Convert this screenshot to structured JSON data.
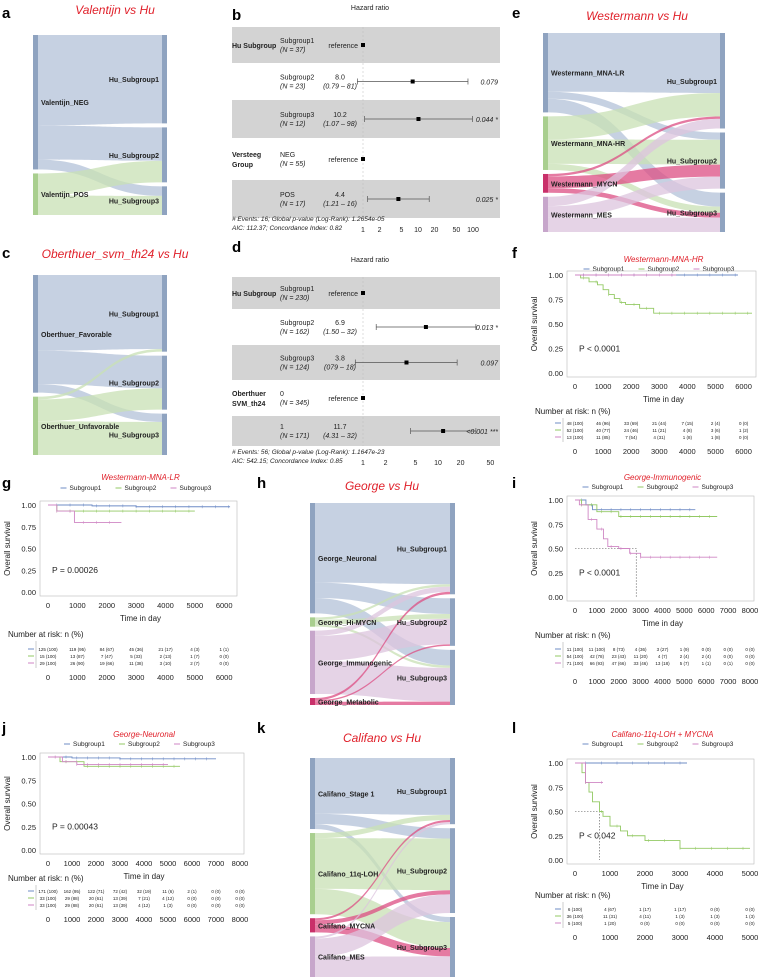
{
  "colors": {
    "title_red": "#e0202a",
    "sg1": "#6f8cc6",
    "sg2": "#93c964",
    "sg3": "#cf86c4",
    "band": "#d3d3d3",
    "right_node": "#8fa3c0"
  },
  "sankeys": [
    {
      "letter": "a",
      "title": "Valentijn vs Hu",
      "left": [
        {
          "name": "Valentijn_NEG",
          "value": 55,
          "color": "#b3c2d8",
          "bar": "#8fa3c0"
        },
        {
          "name": "Valentijn_POS",
          "value": 17,
          "color": "#c8e0b4",
          "bar": "#a9cf8f"
        }
      ],
      "right": [
        "Hu_Subgroup1",
        "Hu_Subgroup2",
        "Hu_Subgroup3"
      ],
      "flows": [
        [
          0,
          0,
          37
        ],
        [
          0,
          1,
          14
        ],
        [
          0,
          2,
          4
        ],
        [
          1,
          1,
          9
        ],
        [
          1,
          2,
          8
        ]
      ]
    },
    {
      "letter": "c",
      "title": "Oberthuer_svm_th24 vs Hu",
      "left": [
        {
          "name": "Oberthuer_Favorable",
          "value": 345,
          "color": "#b3c2d8",
          "bar": "#8fa3c0"
        },
        {
          "name": "Oberthuer_Unfavorable",
          "value": 171,
          "color": "#c8e0b4",
          "bar": "#a9cf8f"
        }
      ],
      "right": [
        "Hu_Subgroup1",
        "Hu_Subgroup2",
        "Hu_Subgroup3"
      ],
      "flows": [
        [
          0,
          0,
          222
        ],
        [
          0,
          1,
          98
        ],
        [
          0,
          2,
          25
        ],
        [
          1,
          0,
          8
        ],
        [
          1,
          1,
          64
        ],
        [
          1,
          2,
          99
        ]
      ]
    },
    {
      "letter": "e",
      "title": "Westermann vs Hu",
      "left": [
        {
          "name": "Westermann_MNA-LR",
          "value": 169,
          "color": "#b3c2d8",
          "bar": "#8fa3c0"
        },
        {
          "name": "Westermann_MNA-HR",
          "value": 114,
          "color": "#c8e0b4",
          "bar": "#a9cf8f"
        },
        {
          "name": "Westermann_MYCN",
          "value": 40,
          "color": "#dc4d83",
          "bar": "#c9306a"
        },
        {
          "name": "Westermann_MES",
          "value": 75,
          "color": "#dcc4de",
          "bar": "#c7a6cb"
        }
      ],
      "right": [
        "Hu_Subgroup1",
        "Hu_Subgroup2",
        "Hu_Subgroup3"
      ],
      "flows": [
        [
          0,
          0,
          125
        ],
        [
          0,
          1,
          15
        ],
        [
          0,
          2,
          29
        ],
        [
          1,
          0,
          49
        ],
        [
          1,
          1,
          52
        ],
        [
          1,
          2,
          13
        ],
        [
          2,
          0,
          5
        ],
        [
          2,
          1,
          25
        ],
        [
          2,
          2,
          10
        ],
        [
          3,
          0,
          20
        ],
        [
          3,
          1,
          25
        ],
        [
          3,
          2,
          30
        ]
      ]
    },
    {
      "letter": "h",
      "title": "George vs Hu",
      "left": [
        {
          "name": "George_Neuronal",
          "value": 237,
          "color": "#b3c2d8",
          "bar": "#8fa3c0"
        },
        {
          "name": "George_Hi-MYCN",
          "value": 20,
          "color": "#c8e0b4",
          "bar": "#a9cf8f"
        },
        {
          "name": "George_Immunogenic",
          "value": 136,
          "color": "#dcc4de",
          "bar": "#c7a6cb"
        },
        {
          "name": "George_Metabolic",
          "value": 15,
          "color": "#dc4d83",
          "bar": "#c9306a"
        }
      ],
      "right": [
        "Hu_Subgroup1",
        "Hu_Subgroup2",
        "Hu_Subgroup3"
      ],
      "flows": [
        [
          0,
          0,
          171
        ],
        [
          0,
          1,
          33
        ],
        [
          0,
          2,
          33
        ],
        [
          1,
          0,
          5
        ],
        [
          1,
          1,
          10
        ],
        [
          1,
          2,
          5
        ],
        [
          2,
          0,
          11
        ],
        [
          2,
          1,
          54
        ],
        [
          2,
          2,
          71
        ],
        [
          3,
          0,
          5
        ],
        [
          3,
          1,
          3
        ],
        [
          3,
          2,
          7
        ]
      ]
    },
    {
      "letter": "k",
      "title": "Califano vs Hu",
      "left": [
        {
          "name": "Califano_Stage 1",
          "value": 70,
          "color": "#b3c2d8",
          "bar": "#8fa3c0"
        },
        {
          "name": "Califano_11q-LOH",
          "value": 80,
          "color": "#c8e0b4",
          "bar": "#a9cf8f"
        },
        {
          "name": "Califano_MYCNA",
          "value": 14,
          "color": "#dc4d83",
          "bar": "#c9306a"
        },
        {
          "name": "Califano_MES",
          "value": 40,
          "color": "#dcc4de",
          "bar": "#c7a6cb"
        }
      ],
      "right": [
        "Hu_Subgroup1",
        "Hu_Subgroup2",
        "Hu_Subgroup3"
      ],
      "flows": [
        [
          0,
          0,
          55
        ],
        [
          0,
          1,
          10
        ],
        [
          0,
          2,
          5
        ],
        [
          1,
          0,
          5
        ],
        [
          1,
          1,
          50
        ],
        [
          1,
          2,
          25
        ],
        [
          2,
          0,
          2
        ],
        [
          2,
          1,
          4
        ],
        [
          2,
          2,
          8
        ],
        [
          3,
          0,
          2
        ],
        [
          3,
          1,
          18
        ],
        [
          3,
          2,
          20
        ]
      ]
    }
  ],
  "forests": [
    {
      "letter": "b",
      "header": "Hazard ratio",
      "rows": [
        {
          "group": "Hu Subgroup",
          "level": "Subgroup1",
          "n": "(N = 37)",
          "hr": "reference",
          "ci": "",
          "point": 1,
          "lo": null,
          "hi": null,
          "p": ""
        },
        {
          "group": "",
          "level": "Subgroup2",
          "n": "(N = 23)",
          "hr": "8.0",
          "ci": "(0.79 – 81)",
          "point": 8.0,
          "lo": 0.79,
          "hi": 81,
          "p": "0.079"
        },
        {
          "group": "",
          "level": "Subgroup3",
          "n": "(N = 12)",
          "hr": "10.2",
          "ci": "(1.07 – 98)",
          "point": 10.2,
          "lo": 1.07,
          "hi": 98,
          "p": "0.044 *"
        },
        {
          "group": "Versteeg Group",
          "level": "NEG",
          "n": "(N = 55)",
          "hr": "reference",
          "ci": "",
          "point": 1,
          "lo": null,
          "hi": null,
          "p": ""
        },
        {
          "group": "",
          "level": "POS",
          "n": "(N = 17)",
          "hr": "4.4",
          "ci": "(1.21 – 16)",
          "point": 4.4,
          "lo": 1.21,
          "hi": 16,
          "p": "0.025 *"
        }
      ],
      "footer1": "# Events: 16; Global p-value (Log-Rank): 1.2654e-05",
      "footer2": "AIC: 112.37; Concordance Index: 0.82",
      "ticks": [
        1,
        2,
        5,
        10,
        20,
        50,
        100
      ]
    },
    {
      "letter": "d",
      "header": "Hazard ratio",
      "rows": [
        {
          "group": "Hu Subgroup",
          "level": "Subgroup1",
          "n": "(N = 230)",
          "hr": "reference",
          "ci": "",
          "point": 1,
          "lo": null,
          "hi": null,
          "p": ""
        },
        {
          "group": "",
          "level": "Subgroup2",
          "n": "(N = 162)",
          "hr": "6.9",
          "ci": "(1.50 – 32)",
          "point": 6.9,
          "lo": 1.5,
          "hi": 32,
          "p": "0.013 *"
        },
        {
          "group": "",
          "level": "Subgroup3",
          "n": "(N = 124)",
          "hr": "3.8",
          "ci": "(079 – 18)",
          "point": 3.8,
          "lo": 0.79,
          "hi": 18,
          "p": "0.097"
        },
        {
          "group": "Oberthuer SVM_th24",
          "level": "0",
          "n": "(N = 345)",
          "hr": "reference",
          "ci": "",
          "point": 1,
          "lo": null,
          "hi": null,
          "p": ""
        },
        {
          "group": "",
          "level": "1",
          "n": "(N = 171)",
          "hr": "11.7",
          "ci": "(4.31 – 32)",
          "point": 11.7,
          "lo": 4.31,
          "hi": 32,
          "p": "<0.001 ***"
        }
      ],
      "footer1": "# Events: 56; Global p-value (Log-Rank): 1.1647e-23",
      "footer2": "AIC: 542.15; Concordance Index: 0.85",
      "ticks": [
        1,
        2,
        5,
        10,
        20,
        50
      ]
    }
  ],
  "km": [
    {
      "letter": "f",
      "title": "Westermann-MNA-HR",
      "legend": [
        "Subgroup1",
        "Subgroup2",
        "Subgroup3"
      ],
      "ylabel": "Overall survival",
      "xlabel": "Time in day",
      "pvalue": "P < 0.0001",
      "risk_label": "Number at risk: n (%)",
      "yticks": [
        "1.00",
        "0.75",
        "0.50",
        "0.25",
        "0.00"
      ],
      "xticks": [
        0,
        1000,
        2000,
        3000,
        4000,
        5000,
        6000
      ],
      "xmax": 6300,
      "series": [
        [
          [
            0,
            1
          ],
          [
            5800,
            1
          ]
        ],
        [
          [
            0,
            1
          ],
          [
            200,
            0.97
          ],
          [
            500,
            0.93
          ],
          [
            800,
            0.9
          ],
          [
            1000,
            0.85
          ],
          [
            1200,
            0.8
          ],
          [
            1400,
            0.76
          ],
          [
            1600,
            0.72
          ],
          [
            1800,
            0.7
          ],
          [
            2300,
            0.66
          ],
          [
            2800,
            0.61
          ],
          [
            6300,
            0.61
          ]
        ],
        [
          [
            0,
            1
          ],
          [
            3600,
            1
          ]
        ]
      ],
      "risk": [
        [
          "48 (100)",
          "46 (96)",
          "33 (69)",
          "21 (44)",
          "7 (15)",
          "2 (4)",
          "0 (0)"
        ],
        [
          "52 (100)",
          "40 (77)",
          "24 (46)",
          "11 (21)",
          "4 (8)",
          "3 (6)",
          "1 (2)"
        ],
        [
          "13 (100)",
          "11 (85)",
          "7 (54)",
          "4 (31)",
          "1 (8)",
          "1 (8)",
          "0 (0)"
        ]
      ]
    },
    {
      "letter": "g",
      "title": "Westermann-MNA-LR",
      "legend": [
        "Subgroup1",
        "Subgroup2",
        "Subgroup3"
      ],
      "ylabel": "Overall survival",
      "xlabel": "Time in day",
      "pvalue": "P = 0.00026",
      "risk_label": "Number at risk: n (%)",
      "yticks": [
        "1.00",
        "0.75",
        "0.50",
        "0.25",
        "0.00"
      ],
      "xticks": [
        0,
        1000,
        2000,
        3000,
        4000,
        5000,
        6000
      ],
      "xmax": 6300,
      "series": [
        [
          [
            0,
            1
          ],
          [
            1500,
            0.99
          ],
          [
            3000,
            0.98
          ],
          [
            6200,
            0.98
          ]
        ],
        [
          [
            0,
            1
          ],
          [
            300,
            0.93
          ],
          [
            5000,
            0.93
          ]
        ],
        [
          [
            0,
            1
          ],
          [
            300,
            0.93
          ],
          [
            900,
            0.8
          ],
          [
            2500,
            0.8
          ]
        ]
      ],
      "risk": [
        [
          "125 (100)",
          "119 (95)",
          "84 (67)",
          "45 (36)",
          "21 (17)",
          "4 (3)",
          "1 (1)"
        ],
        [
          "15 (100)",
          "13 (87)",
          "7 (47)",
          "5 (33)",
          "2 (13)",
          "1 (7)",
          "0 (0)"
        ],
        [
          "29 (100)",
          "26 (90)",
          "19 (66)",
          "11 (38)",
          "3 (10)",
          "2 (7)",
          "0 (0)"
        ]
      ]
    },
    {
      "letter": "i",
      "title": "George-Immunogenic",
      "legend": [
        "Subgroup1",
        "Subgroup2",
        "Subgroup3"
      ],
      "ylabel": "Overall survival",
      "xlabel": "Time in day",
      "pvalue": "P < 0.0001",
      "risk_label": "Number at risk: n (%)",
      "yticks": [
        "1.00",
        "0.75",
        "0.50",
        "0.25",
        "0.00"
      ],
      "xticks": [
        0,
        1000,
        2000,
        3000,
        4000,
        5000,
        6000,
        7000,
        8000
      ],
      "xmax": 8000,
      "series": [
        [
          [
            0,
            1
          ],
          [
            500,
            0.95
          ],
          [
            800,
            0.9
          ],
          [
            5500,
            0.9
          ]
        ],
        [
          [
            0,
            1
          ],
          [
            300,
            0.95
          ],
          [
            1000,
            0.88
          ],
          [
            2000,
            0.83
          ],
          [
            6500,
            0.83
          ]
        ],
        [
          [
            0,
            1
          ],
          [
            200,
            0.95
          ],
          [
            600,
            0.8
          ],
          [
            1000,
            0.7
          ],
          [
            1300,
            0.6
          ],
          [
            1500,
            0.52
          ],
          [
            2000,
            0.5
          ],
          [
            2500,
            0.45
          ],
          [
            3000,
            0.41
          ],
          [
            6500,
            0.41
          ]
        ]
      ],
      "median": 2800,
      "risk": [
        [
          "11 (100)",
          "11 (100)",
          "8 (73)",
          "4 (36)",
          "3 (27)",
          "1 (9)",
          "0 (0)",
          "0 (0)",
          "0 (0)"
        ],
        [
          "54 (100)",
          "42 (78)",
          "23 (43)",
          "11 (20)",
          "4 (7)",
          "2 (4)",
          "2 (4)",
          "0 (0)",
          "0 (0)"
        ],
        [
          "71 (100)",
          "66 (93)",
          "47 (66)",
          "33 (46)",
          "13 (18)",
          "5 (7)",
          "1 (1)",
          "0 (1)",
          "0 (0)"
        ]
      ]
    },
    {
      "letter": "j",
      "title": "George-Neuronal",
      "legend": [
        "Subgroup1",
        "Subgroup2",
        "Subgroup3"
      ],
      "ylabel": "Overall survival",
      "xlabel": "Time in day",
      "pvalue": "P = 0.00043",
      "risk_label": "Number at risk: n (%)",
      "yticks": [
        "1.00",
        "0.75",
        "0.50",
        "0.25",
        "0.00"
      ],
      "xticks": [
        0,
        1000,
        2000,
        3000,
        4000,
        5000,
        6000,
        7000,
        8000
      ],
      "xmax": 8000,
      "series": [
        [
          [
            0,
            1
          ],
          [
            1000,
            0.99
          ],
          [
            3000,
            0.98
          ],
          [
            7000,
            0.98
          ]
        ],
        [
          [
            0,
            1
          ],
          [
            500,
            0.95
          ],
          [
            1500,
            0.9
          ],
          [
            5500,
            0.9
          ]
        ],
        [
          [
            0,
            1
          ],
          [
            600,
            0.95
          ],
          [
            1200,
            0.92
          ],
          [
            5000,
            0.92
          ]
        ]
      ],
      "risk": [
        [
          "171 (100)",
          "162 (95)",
          "122 (71)",
          "72 (42)",
          "32 (19)",
          "11 (6)",
          "2 (1)",
          "0 (0)",
          "0 (0)"
        ],
        [
          "33 (100)",
          "29 (88)",
          "20 (61)",
          "13 (39)",
          "7 (21)",
          "4 (12)",
          "0 (0)",
          "0 (0)",
          "0 (0)"
        ],
        [
          "33 (100)",
          "29 (88)",
          "20 (61)",
          "13 (39)",
          "4 (12)",
          "1 (3)",
          "0 (0)",
          "0 (0)",
          "0 (0)"
        ]
      ]
    },
    {
      "letter": "l",
      "title": "Califano-11q-LOH + MYCNA",
      "legend": [
        "Subgroup1",
        "Subgroup2",
        "Subgroup3"
      ],
      "ylabel": "Overall survival",
      "xlabel": "Time in Day",
      "pvalue": "P < 0.042",
      "risk_label": "Number at risk: n (%)",
      "yticks": [
        "1.00",
        "0.75",
        "0.50",
        "0.25",
        "0.00"
      ],
      "xticks": [
        0,
        1000,
        2000,
        3000,
        4000,
        5000
      ],
      "xmax": 5000,
      "series": [
        [
          [
            0,
            1
          ],
          [
            3200,
            1
          ]
        ],
        [
          [
            0,
            1
          ],
          [
            200,
            0.9
          ],
          [
            300,
            0.8
          ],
          [
            400,
            0.7
          ],
          [
            500,
            0.6
          ],
          [
            700,
            0.5
          ],
          [
            800,
            0.45
          ],
          [
            1000,
            0.35
          ],
          [
            1300,
            0.3
          ],
          [
            1500,
            0.25
          ],
          [
            2000,
            0.2
          ],
          [
            3000,
            0.12
          ],
          [
            5000,
            0.12
          ]
        ],
        [
          [
            0,
            1
          ],
          [
            300,
            0.8
          ],
          [
            800,
            0.8
          ]
        ]
      ],
      "median": 700,
      "risk": [
        [
          "6 (100)",
          "4 (67)",
          "1 (17)",
          "1 (17)",
          "0 (0)",
          "0 (0)"
        ],
        [
          "36 (100)",
          "11 (31)",
          "4 (11)",
          "1 (3)",
          "1 (3)",
          "1 (3)"
        ],
        [
          "5 (100)",
          "1 (20)",
          "0 (0)",
          "0 (0)",
          "0 (0)",
          "0 (0)"
        ]
      ]
    }
  ]
}
